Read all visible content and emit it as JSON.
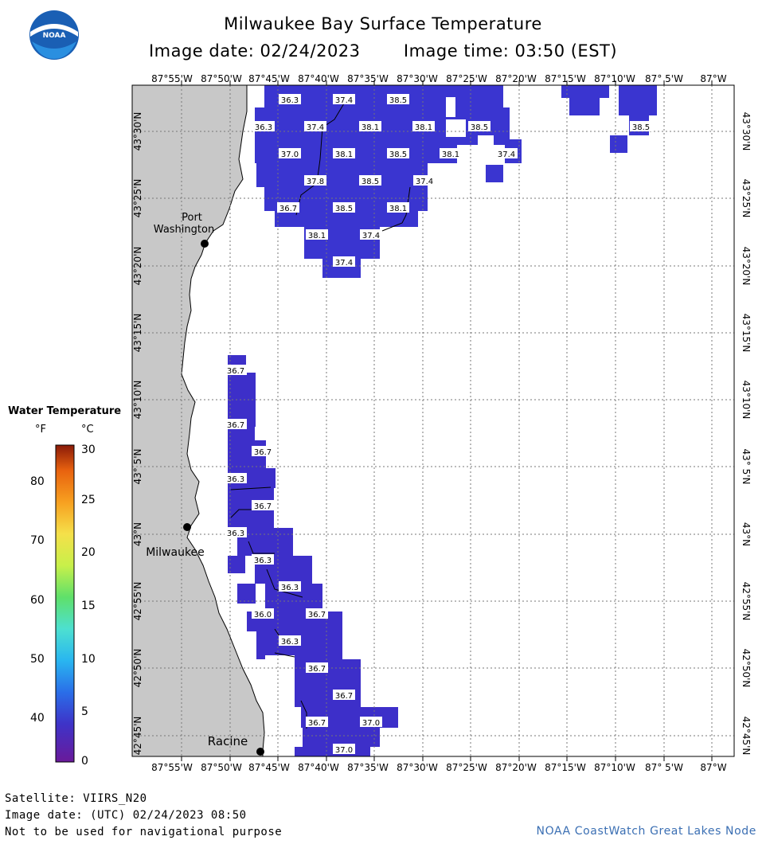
{
  "header": {
    "title": "Milwaukee Bay Surface Temperature",
    "image_date_label": "Image date: 02/24/2023",
    "image_time_label": "Image time: 03:50 (EST)"
  },
  "logo": {
    "text": "NOAA"
  },
  "axes": {
    "longitude_ticks": [
      "87°55'W",
      "87°50'W",
      "87°45'W",
      "87°40'W",
      "87°35'W",
      "87°30'W",
      "87°25'W",
      "87°20'W",
      "87°15'W",
      "87°10'W",
      "87° 5'W",
      "87°W"
    ],
    "latitude_ticks": [
      "43°30'N",
      "43°25'N",
      "43°20'N",
      "43°15'N",
      "43°10'N",
      "43° 5'N",
      "43°N",
      "42°55'N",
      "42°50'N",
      "42°45'N"
    ]
  },
  "cities": [
    {
      "name_line1": "Port",
      "name_line2": "Washington"
    },
    {
      "name_line1": "Milwaukee",
      "name_line2": ""
    },
    {
      "name_line1": "Racine",
      "name_line2": ""
    }
  ],
  "temperature_labels": [
    "36.3",
    "37.4",
    "38.5",
    "36.3",
    "37.4",
    "38.1",
    "38.1",
    "38.5",
    "38.5",
    "37.0",
    "38.1",
    "38.5",
    "38.1",
    "37.4",
    "37.8",
    "38.5",
    "37.4",
    "36.7",
    "38.5",
    "38.1",
    "38.1",
    "37.4",
    "37.4",
    "36.7",
    "36.7",
    "36.7",
    "36.3",
    "36.7",
    "36.3",
    "36.3",
    "36.3",
    "36.0",
    "36.7",
    "36.3",
    "36.7",
    "36.7",
    "36.7",
    "37.0",
    "37.0"
  ],
  "legend": {
    "title": "Water Temperature",
    "unit_f": "°F",
    "unit_c": "°C",
    "f_ticks": [
      "80",
      "70",
      "60",
      "50",
      "40"
    ],
    "c_ticks": [
      "30",
      "25",
      "20",
      "15",
      "10",
      "5",
      "0"
    ]
  },
  "footer": {
    "satellite": "Satellite: VIIRS_N20",
    "utc_date": "Image date: (UTC) 02/24/2023  08:50",
    "disclaimer": "Not to be used for navigational purpose",
    "credit": "NOAA CoastWatch Great Lakes Node"
  },
  "colors": {
    "land": "#c8c8c8",
    "water_cold": "#3d2fc9",
    "water_mid": "#3a3ad6",
    "background": "#ffffff",
    "credit_text": "#3b6fb3"
  }
}
